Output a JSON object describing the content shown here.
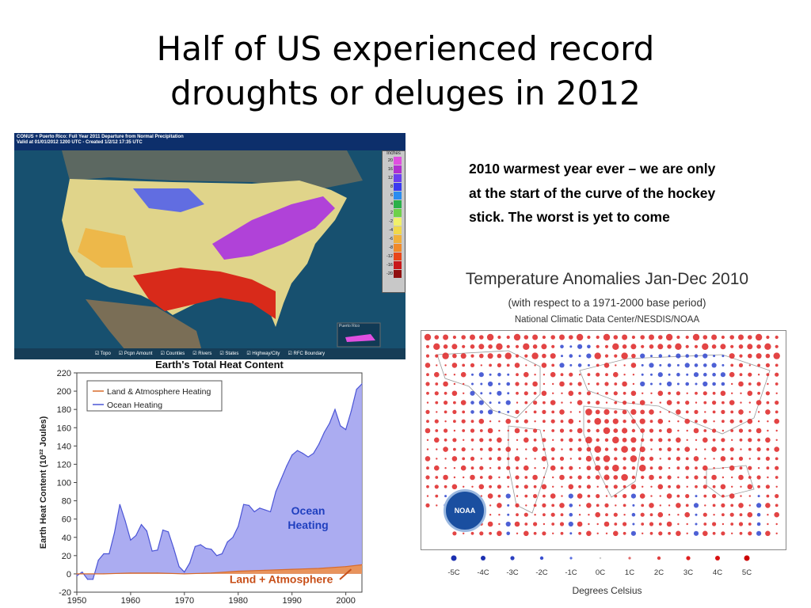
{
  "slide": {
    "title_line1": "Half of US experienced record",
    "title_line2": "droughts or deluges in 2012",
    "notes": "2010 warmest year ever – we are only at the start of the curve of the hockey stick. The worst is yet to come"
  },
  "precip_map": {
    "header_line1": "CONUS + Puerto Rico: Full Year 2011 Departure from Normal Precipitation",
    "header_line2": "Valid at 01/01/2012 1200 UTC - Created 1/2/12 17:35 UTC",
    "legend_title": "Inches",
    "legend_values": [
      "20",
      "16",
      "12",
      "8",
      "6",
      "4",
      "2",
      "-2",
      "-4",
      "-6",
      "-8",
      "-12",
      "-16",
      "-20"
    ],
    "legend_colors": [
      "#e04fe0",
      "#b030d0",
      "#6a3ff0",
      "#3a3af0",
      "#2a8cf0",
      "#2ab04a",
      "#6ed14a",
      "#f0f06a",
      "#f0d84a",
      "#f0b03a",
      "#f08a2a",
      "#e8461a",
      "#c8181a",
      "#901010"
    ],
    "inset_label": "Puerto Rico",
    "footer_items": [
      "Topo",
      "Pcpn Amount",
      "Counties",
      "Rivers",
      "States",
      "Highway/City",
      "RFC Boundary"
    ]
  },
  "anomaly_map": {
    "title": "Temperature Anomalies Jan-Dec 2010",
    "subtitle": "(with respect to a 1971-2000 base period)",
    "source": "National Climatic Data Center/NESDIS/NOAA",
    "logo_text": "NOAA",
    "scale_labels": [
      "-5C",
      "-4C",
      "-3C",
      "-2C",
      "-1C",
      "0C",
      "1C",
      "2C",
      "3C",
      "4C",
      "5C"
    ],
    "scale_colors": [
      "#1a2fb0",
      "#1a2fb0",
      "#2a3fc0",
      "#3a4fd0",
      "#5a6fe0",
      "#cccccc",
      "#e06a6a",
      "#e04040",
      "#e02020",
      "#d81010",
      "#cc0000"
    ],
    "axis_label": "Degrees Celsius"
  },
  "chart_data": {
    "type": "area",
    "title": "Earth's Total Heat Content",
    "ylabel": "Earth Heat Content (10²² Joules)",
    "ylim": [
      -20,
      220
    ],
    "yticks": [
      -20,
      0,
      20,
      40,
      60,
      80,
      100,
      120,
      140,
      160,
      180,
      200,
      220
    ],
    "xlim": [
      1950,
      2003
    ],
    "xticks": [
      1950,
      1960,
      1970,
      1980,
      1990,
      2000
    ],
    "legend": [
      "Land & Atmosphere Heating",
      "Ocean Heating"
    ],
    "annotations": [
      "Ocean Heating",
      "Land + Atmosphere"
    ],
    "series": [
      {
        "name": "Ocean Heating",
        "color": "#a7a8f0",
        "line_color": "#4b55d6",
        "x": [
          1950,
          1951,
          1952,
          1953,
          1954,
          1955,
          1956,
          1957,
          1958,
          1959,
          1960,
          1961,
          1962,
          1963,
          1964,
          1965,
          1966,
          1967,
          1968,
          1969,
          1970,
          1971,
          1972,
          1973,
          1974,
          1975,
          1976,
          1977,
          1978,
          1979,
          1980,
          1981,
          1982,
          1983,
          1984,
          1985,
          1986,
          1987,
          1988,
          1989,
          1990,
          1991,
          1992,
          1993,
          1994,
          1995,
          1996,
          1997,
          1998,
          1999,
          2000,
          2001,
          2002,
          2003
        ],
        "y": [
          -2,
          2,
          -6,
          -6,
          15,
          22,
          22,
          45,
          76,
          58,
          37,
          42,
          54,
          47,
          25,
          26,
          48,
          46,
          28,
          8,
          2,
          12,
          30,
          32,
          28,
          27,
          20,
          22,
          35,
          40,
          52,
          76,
          75,
          68,
          72,
          70,
          68,
          90,
          104,
          118,
          130,
          135,
          132,
          128,
          132,
          142,
          155,
          165,
          180,
          162,
          158,
          178,
          202,
          208
        ]
      },
      {
        "name": "Land & Atmosphere Heating",
        "color": "#e8935c",
        "line_color": "#d86a2a",
        "x": [
          1950,
          1955,
          1960,
          1965,
          1970,
          1975,
          1980,
          1985,
          1990,
          1995,
          2000,
          2003
        ],
        "y": [
          0,
          0,
          1,
          1,
          0,
          1,
          3,
          4,
          5,
          6,
          8,
          10
        ]
      }
    ]
  }
}
